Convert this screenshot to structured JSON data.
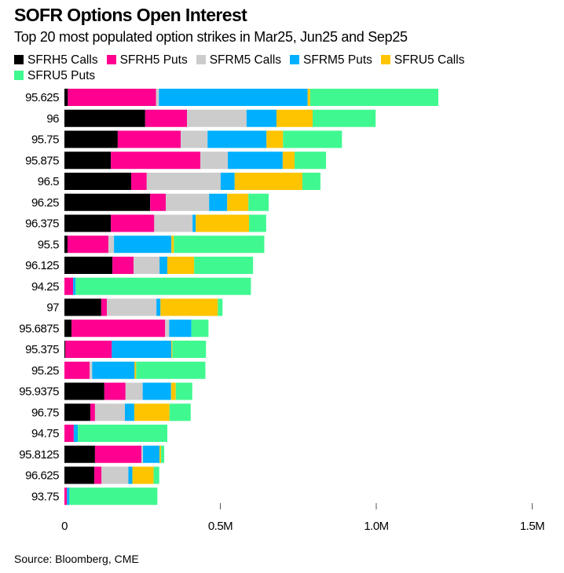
{
  "chart_data": {
    "type": "bar",
    "orientation": "horizontal",
    "stacked": true,
    "title": "SOFR Options Open Interest",
    "subtitle": "Top 20 most populated option strikes in Mar25, Jun25 and Sep25",
    "xlabel": "",
    "ylabel": "",
    "xlim": [
      0,
      1500000
    ],
    "xticks": [
      0,
      500000,
      1000000,
      1500000
    ],
    "xtick_labels": [
      "0",
      "0.5M",
      "1.0M",
      "1.5M"
    ],
    "legend_position": "top",
    "categories": [
      "95.625",
      "96",
      "95.75",
      "95.875",
      "96.5",
      "96.25",
      "96.375",
      "95.5",
      "96.125",
      "94.25",
      "97",
      "95.6875",
      "95.375",
      "95.25",
      "95.9375",
      "96.75",
      "94.75",
      "95.8125",
      "96.625",
      "93.75"
    ],
    "series": [
      {
        "name": "SFRH5 Calls",
        "color": "#000000",
        "values": [
          11000,
          259000,
          171000,
          149000,
          214000,
          275000,
          149000,
          10000,
          154000,
          0,
          118000,
          23000,
          3000,
          0,
          128000,
          83000,
          0,
          98000,
          96000,
          0
        ]
      },
      {
        "name": "SFRH5 Puts",
        "color": "#ff0090",
        "values": [
          283000,
          134000,
          202000,
          287000,
          50000,
          50000,
          139000,
          131000,
          68000,
          28000,
          18000,
          300000,
          149000,
          81000,
          68000,
          15000,
          30000,
          149000,
          23000,
          8000
        ]
      },
      {
        "name": "SFRM5 Calls",
        "color": "#cccccc",
        "values": [
          9000,
          191000,
          86000,
          88000,
          237000,
          139000,
          123000,
          18000,
          83000,
          0,
          159000,
          13000,
          0,
          8000,
          55000,
          96000,
          0,
          5000,
          86000,
          0
        ]
      },
      {
        "name": "SFRM5 Puts",
        "color": "#00b0ff",
        "values": [
          477000,
          96000,
          189000,
          176000,
          45000,
          58000,
          10000,
          184000,
          25000,
          8000,
          13000,
          71000,
          191000,
          136000,
          91000,
          30000,
          13000,
          53000,
          13000,
          8000
        ]
      },
      {
        "name": "SFRU5 Calls",
        "color": "#ffc400",
        "values": [
          8000,
          116000,
          53000,
          38000,
          217000,
          68000,
          171000,
          8000,
          86000,
          0,
          184000,
          0,
          3000,
          5000,
          15000,
          113000,
          0,
          5000,
          68000,
          0
        ]
      },
      {
        "name": "SFRU5 Puts",
        "color": "#40f890",
        "values": [
          411000,
          202000,
          189000,
          101000,
          58000,
          65000,
          55000,
          290000,
          189000,
          562000,
          15000,
          55000,
          108000,
          222000,
          53000,
          68000,
          287000,
          10000,
          18000,
          282000
        ]
      }
    ],
    "source": "Source: Bloomberg, CME"
  }
}
